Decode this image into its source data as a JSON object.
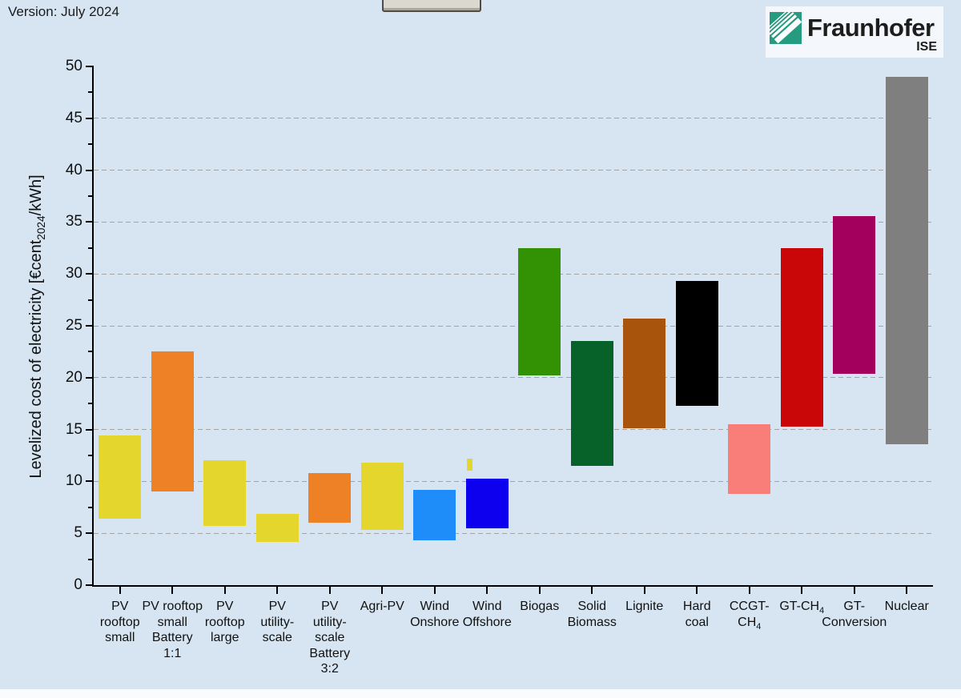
{
  "page": {
    "background": "#D6E5F1",
    "version_label": "Version: July 2024"
  },
  "toolbar": {
    "partial_button_visible": true
  },
  "logo": {
    "brand": "Fraunhofer",
    "institute": "ISE",
    "green": "#259B80"
  },
  "chart_data": {
    "type": "bar",
    "bar_style": "floating-range",
    "title": "",
    "xlabel": "",
    "ylabel": "Levelized cost of electricity [€cent_{2024}/kWh]",
    "unit": "eurocent per kWh (2024)",
    "ylim": [
      0,
      50
    ],
    "ytick_major": 5,
    "ytick_minor": 2.5,
    "legend": "none",
    "grid": {
      "values": [
        5,
        10,
        15,
        20,
        25,
        30,
        35,
        40,
        45
      ],
      "style": "dashed",
      "color": "#A3A3A3"
    },
    "bars": [
      {
        "name": "PV rooftop small",
        "label_lines": [
          "PV",
          "rooftop",
          "small"
        ],
        "min": 6.4,
        "max": 14.4,
        "color": "#E4D62C"
      },
      {
        "name": "PV rooftop small Battery 1:1",
        "label_lines": [
          "PV rooftop",
          "small",
          "Battery",
          "1:1"
        ],
        "min": 9.0,
        "max": 22.5,
        "color": "#EE8126"
      },
      {
        "name": "PV rooftop large",
        "label_lines": [
          "PV",
          "rooftop",
          "large"
        ],
        "min": 5.7,
        "max": 12.0,
        "color": "#E4D62C"
      },
      {
        "name": "PV utility-scale",
        "label_lines": [
          "PV",
          "utility-",
          "scale"
        ],
        "min": 4.2,
        "max": 6.9,
        "color": "#E4D62C"
      },
      {
        "name": "PV utility-scale Battery 3:2",
        "label_lines": [
          "PV",
          "utility-",
          "scale",
          "Battery",
          "3:2"
        ],
        "min": 6.0,
        "max": 10.8,
        "color": "#EE8126"
      },
      {
        "name": "Agri-PV",
        "label_lines": [
          "Agri-PV"
        ],
        "min": 5.3,
        "max": 11.8,
        "color": "#E4D62C"
      },
      {
        "name": "Wind Onshore",
        "label_lines": [
          "Wind",
          "Onshore"
        ],
        "min": 4.3,
        "max": 9.2,
        "color": "#1E8CF9"
      },
      {
        "name": "Wind Offshore",
        "label_lines": [
          "Wind",
          "Offshore"
        ],
        "min": 5.5,
        "max": 10.3,
        "color": "#0D00EF"
      },
      {
        "name": "Biogas",
        "label_lines": [
          "Biogas"
        ],
        "min": 20.2,
        "max": 32.5,
        "color": "#339104"
      },
      {
        "name": "Solid Biomass",
        "label_lines": [
          "Solid",
          "Biomass"
        ],
        "min": 11.5,
        "max": 23.5,
        "color": "#066228"
      },
      {
        "name": "Lignite",
        "label_lines": [
          "Lignite"
        ],
        "min": 15.1,
        "max": 25.7,
        "color": "#A9540D"
      },
      {
        "name": "Hard coal",
        "label_lines": [
          "Hard",
          "coal"
        ],
        "min": 17.3,
        "max": 29.3,
        "color": "#000000"
      },
      {
        "name": "CCGT-CH4",
        "label_lines": [
          "CCGT-",
          "CH_{4}"
        ],
        "min": 8.8,
        "max": 15.5,
        "color": "#F97D78"
      },
      {
        "name": "GT-CH4",
        "label_lines": [
          "GT-CH_{4}"
        ],
        "min": 15.3,
        "max": 32.5,
        "color": "#C90708"
      },
      {
        "name": "GT-Conversion",
        "label_lines": [
          "GT-",
          "Conversion"
        ],
        "min": 20.4,
        "max": 35.6,
        "color": "#A3005E"
      },
      {
        "name": "Nuclear",
        "label_lines": [
          "Nuclear"
        ],
        "min": 13.6,
        "max": 49.0,
        "color": "#7F7F7F"
      }
    ],
    "extra_marker": {
      "category": "Wind Offshore",
      "category_index": 7,
      "min": 11.0,
      "max": 12.2,
      "color": "#E4D62C",
      "x_offset_ratio": -0.33,
      "width_ratio": 0.11
    }
  }
}
